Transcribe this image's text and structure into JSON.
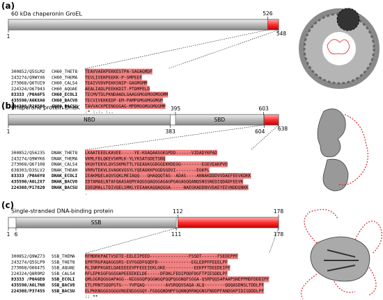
{
  "panels": [
    {
      "label": "(a)",
      "title": "60 kDa chaperonin GroEL",
      "domains": [],
      "positions": [
        1,
        526,
        548
      ],
      "rows": [
        {
          "id": "300852/Q5SLM2",
          "name": "CH60_THET8",
          "seq": "TEAVVAEKPEKKESTPA-SAGAGMDF",
          "bold": false
        },
        {
          "id": "243274/Q9WYX6",
          "name": "CH60_THEMA",
          "seq": "TEVLIVEKPEEKK-P-SMPEEF",
          "bold": false
        },
        {
          "id": "273068/Q6TUI9",
          "name": "CH60_CALS4",
          "seq": "TEAIVVDVPEKKSNIP-GAGMGMM",
          "bold": false
        },
        {
          "id": "224324/O67943",
          "name": "CH60_AQUAE",
          "seq": "AEALIADLPEEKKDIT-PTDMPELD",
          "bold": false
        },
        {
          "id": "83333 /P0A6F5",
          "name": "CH60_ECOLI",
          "seq": "TECMVTDLPKNDAADLGAAGGMGGMGGMGGMM",
          "bold": true
        },
        {
          "id": "435590/A6KXA0",
          "name": "CH60_BACV8",
          "seq": "TECVIVEKKEDP-EM-PAMPGMGGMGGMGM",
          "bold": true
        },
        {
          "id": "224308/P28598",
          "name": "CH60_BACSU",
          "seq": "TAVVACKPEENGGGAG-MPDMGGMGGMGGMM",
          "bold": true
        }
      ],
      "conservation": ":* :.:. :.."
    },
    {
      "label": "(b)",
      "title": "Chaperone protein DnaK",
      "domains": [
        "NBD",
        "SBD"
      ],
      "positions": [
        1,
        383,
        395,
        603,
        604,
        638
      ],
      "rows": [
        {
          "id": "300852/Q56235",
          "name": "DNAK_THET8",
          "seq": "LKAATEEELKAVEE-----YE-KGAQAASGKGPDD------VIDADYKPAD",
          "bold": false
        },
        {
          "id": "243274/Q9WYK6",
          "name": "DNAK_THEMA",
          "seq": "VKMLFDLQKEVSKMLK-YLYKSATGDETSNQ",
          "bold": false
        },
        {
          "id": "273068/Q67108",
          "name": "DNAK_CALS4",
          "seq": "VKQVTEKVLQVSSKMGTTLYGEAGKGGDGGEKKDEGG--------EGEVEAKPVD",
          "bold": false
        },
        {
          "id": "638303/D3SLV2",
          "name": "DNAK_THEAH",
          "seq": "VRRVTEKVLSVAGKVGSYLYQEAGKKPGGDSGDVI--------EGKPL",
          "bold": false
        },
        {
          "id": "83333 /P0A6Y8",
          "name": "DNAK_ECOLI",
          "seq": "IEAKMQELAQVSQKLMEIAQQ---QHAQQQTAG--ADAS----ANNAKDDDVVDAEFEEVKDKK",
          "bold": true
        },
        {
          "id": "435590/A6L2X7",
          "name": "DNAK_BACV8",
          "seq": "IDTAMAELNTAFQAASAEMYAQGSQAQGGAGAGPGAGAGQQANQSNSSNEDIQDADFEEVK",
          "bold": true
        },
        {
          "id": "224308/P17820",
          "name": "DNAK_BACSU",
          "seq": "IDEQMALLTDIVQELSMKLYEEAAKAQQAQGGA-----NAEGKADDNVVDAEYEEVNDDQNKK",
          "bold": true
        }
      ],
      "conservation": "."
    },
    {
      "label": "(c)",
      "title": "Single-stranded DNA-binding protein",
      "domains": [
        "SSB"
      ],
      "positions": [
        1,
        6,
        111,
        112,
        178,
        178
      ],
      "rows": [
        {
          "id": "300852/Q9WZ73",
          "name": "SSB_THEMA",
          "seq": "RFMDRKPAETVSETE-EELEIPEED---------------FSSDT------FSEDEPPF",
          "bold": false
        },
        {
          "id": "243274/Q5SLP9",
          "name": "SSB_THET8",
          "seq": "EPRTRGPAQAGGSRS-EVYGGDFGQDFD-------------EGLEDPFPEEELPF",
          "bold": false
        },
        {
          "id": "273068/O66475",
          "name": "SSB_AQUAE",
          "seq": "RLINRPKGAELQAEEEEEVPFEEEIEKLGKE-----------EEKPFTDEEDEIPF",
          "bold": false
        },
        {
          "id": "224324/Q8R9M2",
          "name": "SSB_CALS4",
          "seq": "RFLEPKSGFGGSGAPEEEEKELDE-----DFDKLFEDIPDDFDGFTPIESDDLPF",
          "bold": false
        },
        {
          "id": "83333 /P0AGE0",
          "name": "SSB_ECOLI",
          "seq": "QMLGGRQGGGAPAGG--NIGGGQPQGGWGQPQQPQGGNQFSGGA-QSRPQQSAPAAPSNEPPMDFDDDIPF",
          "bold": true
        },
        {
          "id": "435590/A6L7N8",
          "name": "SSB_BACV8",
          "seq": "ETLPRNTSQQPGTG---YVPQAQ--------AVSRQQVSAQA-ALQ--------QQQASDNSLTDDLPF",
          "bold": true
        },
        {
          "id": "224308/P37455",
          "name": "SSB_BACSU",
          "seq": "ELPKKNGGGSGGGVNGENSGGGQY-FGGGQNDNPFGQNNQRRNQGNSFNDDPFANDGKPIDISDDDLPF",
          "bold": true
        }
      ],
      "conservation": ":: **"
    }
  ]
}
